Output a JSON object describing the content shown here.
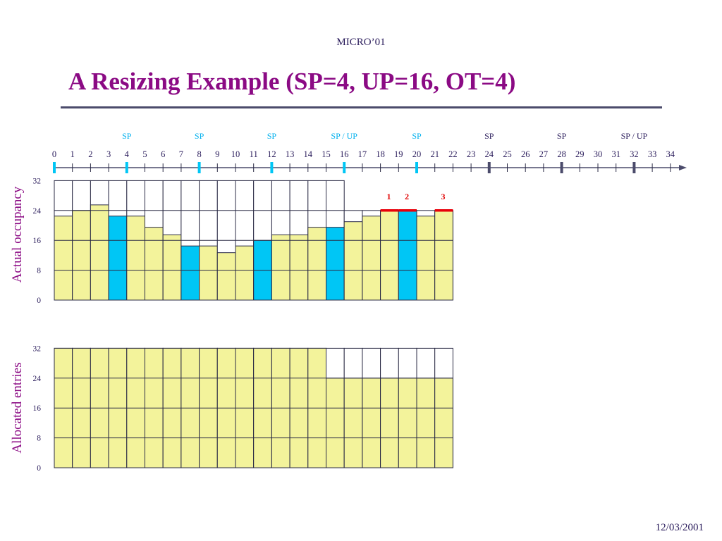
{
  "header": "MICRO’01",
  "title": "A Resizing Example (SP=4, UP=16, OT=4)",
  "footer": "12/03/2001",
  "colors": {
    "fill": "#f3f39b",
    "highlight": "#00c6f5",
    "marker_red": "#e8000a",
    "marker_dark": "#4b4b6b",
    "grid": "#2b2b45",
    "top_label": "#00b0ee",
    "dark_label": "#2b1d5c",
    "red_label": "#e00000",
    "axis_label": "#8b0a84"
  },
  "chart_data": [
    {
      "type": "timeline",
      "ticks": [
        0,
        1,
        2,
        3,
        4,
        5,
        6,
        7,
        8,
        9,
        10,
        11,
        12,
        13,
        14,
        15,
        16,
        17,
        18,
        19,
        20,
        21,
        22,
        23,
        24,
        25,
        26,
        27,
        28,
        29,
        30,
        31,
        32,
        33,
        34
      ],
      "events": [
        {
          "x": 4,
          "label": "SP",
          "style": "highlight"
        },
        {
          "x": 8,
          "label": "SP",
          "style": "highlight"
        },
        {
          "x": 12,
          "label": "SP",
          "style": "highlight"
        },
        {
          "x": 16,
          "label": "SP / UP",
          "style": "highlight"
        },
        {
          "x": 20,
          "label": "SP",
          "style": "highlight"
        },
        {
          "x": 24,
          "label": "SP",
          "style": "dark"
        },
        {
          "x": 28,
          "label": "SP",
          "style": "dark"
        },
        {
          "x": 32,
          "label": "SP / UP",
          "style": "dark"
        }
      ],
      "start_marker": 0
    },
    {
      "type": "bar",
      "ylabel": "Actual occupancy",
      "yticks": [
        0,
        8,
        16,
        24,
        32
      ],
      "ylim": [
        0,
        32
      ],
      "categories": [
        0,
        1,
        2,
        3,
        4,
        5,
        6,
        7,
        8,
        9,
        10,
        11,
        12,
        13,
        14,
        15,
        16,
        17,
        18,
        19,
        20,
        21
      ],
      "values": [
        22.5,
        24,
        25.5,
        22.5,
        22.5,
        19.5,
        17.5,
        14.5,
        14.5,
        12.7,
        14.5,
        16,
        17.5,
        17.5,
        19.5,
        19.5,
        21,
        22.5,
        24,
        24,
        22.5,
        24
      ],
      "capacity": [
        32,
        32,
        32,
        32,
        32,
        32,
        32,
        32,
        32,
        32,
        32,
        32,
        32,
        32,
        32,
        32,
        24,
        24,
        24,
        24,
        24,
        24
      ],
      "highlight_categories": [
        3,
        7,
        11,
        15,
        19
      ],
      "annotations": [
        {
          "category": 18,
          "label": "1"
        },
        {
          "category": 19,
          "label": "2"
        },
        {
          "category": 21,
          "label": "3"
        }
      ]
    },
    {
      "type": "bar",
      "ylabel": "Allocated entries",
      "yticks": [
        0,
        8,
        16,
        24,
        32
      ],
      "ylim": [
        0,
        32
      ],
      "categories": [
        0,
        1,
        2,
        3,
        4,
        5,
        6,
        7,
        8,
        9,
        10,
        11,
        12,
        13,
        14,
        15,
        16,
        17,
        18,
        19,
        20,
        21
      ],
      "values": [
        32,
        32,
        32,
        32,
        32,
        32,
        32,
        32,
        32,
        32,
        32,
        32,
        32,
        32,
        32,
        24,
        24,
        24,
        24,
        24,
        24,
        24
      ],
      "capacity": [
        32,
        32,
        32,
        32,
        32,
        32,
        32,
        32,
        32,
        32,
        32,
        32,
        32,
        32,
        32,
        32,
        32,
        32,
        32,
        32,
        32,
        32
      ]
    }
  ]
}
